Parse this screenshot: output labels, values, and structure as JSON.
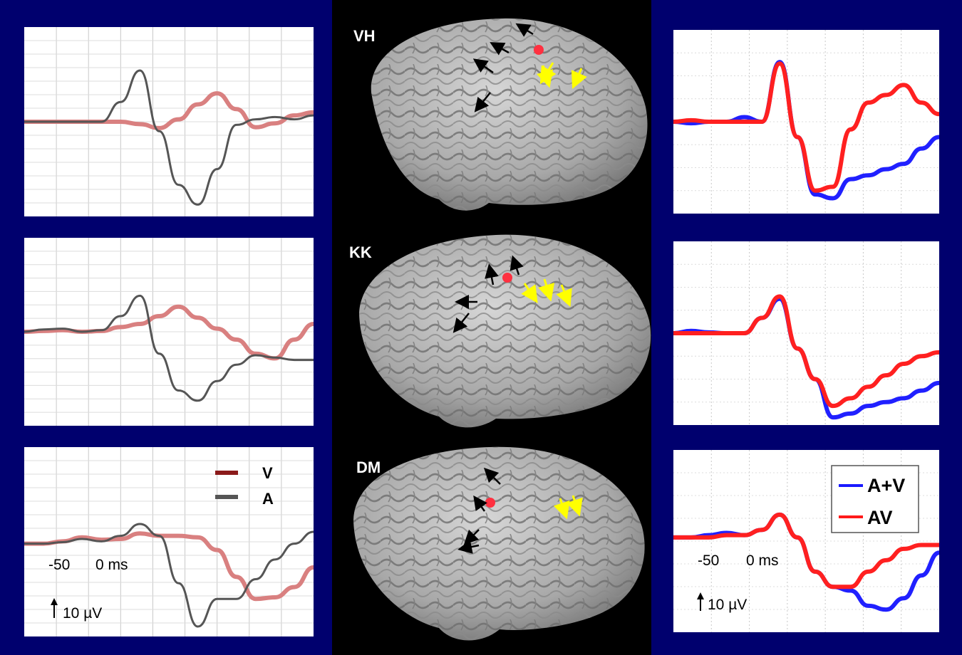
{
  "subjects": [
    "VH",
    "KK",
    "DM"
  ],
  "left_legend": [
    {
      "label": "V",
      "color": "#8b1a1a"
    },
    {
      "label": "A",
      "color": "#555555"
    }
  ],
  "right_legend": [
    {
      "label": "A+V",
      "color": "#1a1aff"
    },
    {
      "label": "AV",
      "color": "#ff1a1a"
    }
  ],
  "scale": {
    "time_labels": [
      "-50",
      "0 ms"
    ],
    "amplitude_label": "10 µV"
  },
  "colors": {
    "background": "#00006e",
    "V_trace": "#d98080",
    "A_trace": "#555555",
    "A+V_trace": "#2020ff",
    "AV_trace": "#ff2020",
    "electrode": "#ff3040",
    "arrow_black": "#000000",
    "arrow_yellow": "#ffff00"
  },
  "chart_data": [
    {
      "type": "line",
      "panel": "left",
      "subject": "VH",
      "series": [
        {
          "name": "V",
          "values": [
            0,
            0,
            0,
            0,
            0,
            0,
            -0.3,
            -0.8,
            0.3,
            2.2,
            3.6,
            1.6,
            -0.7,
            -0.2,
            0.8,
            1.2
          ]
        },
        {
          "name": "A",
          "values": [
            0,
            0,
            0,
            0,
            0,
            2.5,
            6.5,
            -1.2,
            -8,
            -10.5,
            -6,
            -0.4,
            0.3,
            0.6,
            0.3,
            0.8
          ]
        }
      ]
    },
    {
      "type": "line",
      "panel": "left",
      "subject": "KK",
      "series": [
        {
          "name": "V",
          "values": [
            0,
            0.1,
            0.2,
            0,
            0.1,
            0.6,
            1,
            2,
            3.2,
            1.8,
            0.4,
            -1,
            -2.8,
            -3.4,
            -1,
            1
          ]
        },
        {
          "name": "A",
          "values": [
            0,
            0.3,
            0.4,
            0,
            0.2,
            2,
            4.6,
            -2.8,
            -7.5,
            -8.8,
            -6.3,
            -4.2,
            -3,
            -3.3,
            -3.6,
            -3.6
          ]
        }
      ]
    },
    {
      "type": "line",
      "panel": "left",
      "subject": "DM",
      "series": [
        {
          "name": "V",
          "values": [
            0,
            0,
            0.3,
            0.8,
            0.5,
            0.6,
            1.3,
            1,
            1,
            0.8,
            -0.8,
            -4.2,
            -7,
            -6.8,
            -5.5,
            -3
          ]
        },
        {
          "name": "A",
          "values": [
            0,
            0,
            0.2,
            0.6,
            0.3,
            1,
            2.5,
            1,
            -5,
            -10.5,
            -7,
            -7,
            -4.5,
            -2,
            0,
            1.5
          ]
        }
      ]
    },
    {
      "type": "line",
      "panel": "right",
      "subject": "VH",
      "series": [
        {
          "name": "A+V",
          "values": [
            0,
            -0.2,
            0,
            0,
            0.6,
            0,
            7.8,
            -2,
            -9.5,
            -10,
            -7.5,
            -7,
            -6.2,
            -5.5,
            -3.5,
            -2
          ]
        },
        {
          "name": "AV",
          "values": [
            0,
            0.2,
            0,
            0,
            0,
            0,
            7.6,
            -2,
            -9,
            -8.5,
            -1,
            2.5,
            3.5,
            4.8,
            2.5,
            1
          ]
        }
      ]
    },
    {
      "type": "line",
      "panel": "right",
      "subject": "KK",
      "series": [
        {
          "name": "A+V",
          "values": [
            0,
            0.3,
            0.1,
            0,
            0,
            2,
            4.5,
            -2,
            -6,
            -11,
            -10.5,
            -9.5,
            -9,
            -8.5,
            -7.5,
            -6.5
          ]
        },
        {
          "name": "AV",
          "values": [
            0,
            0,
            0,
            0,
            0,
            2,
            4.8,
            -2,
            -6,
            -9.5,
            -8.5,
            -7,
            -5.5,
            -4,
            -3,
            -2.5
          ]
        }
      ]
    },
    {
      "type": "line",
      "panel": "right",
      "subject": "DM",
      "series": [
        {
          "name": "A+V",
          "values": [
            0,
            0,
            0.3,
            0.6,
            0.3,
            1,
            3,
            0,
            -4.5,
            -6.5,
            -7,
            -9,
            -9.5,
            -8,
            -5,
            -2
          ]
        },
        {
          "name": "AV",
          "values": [
            0,
            0,
            0,
            0.3,
            0.3,
            1,
            3,
            0,
            -4.5,
            -6.5,
            -6.5,
            -4.5,
            -3,
            -1.5,
            -1,
            -1
          ]
        }
      ]
    }
  ]
}
